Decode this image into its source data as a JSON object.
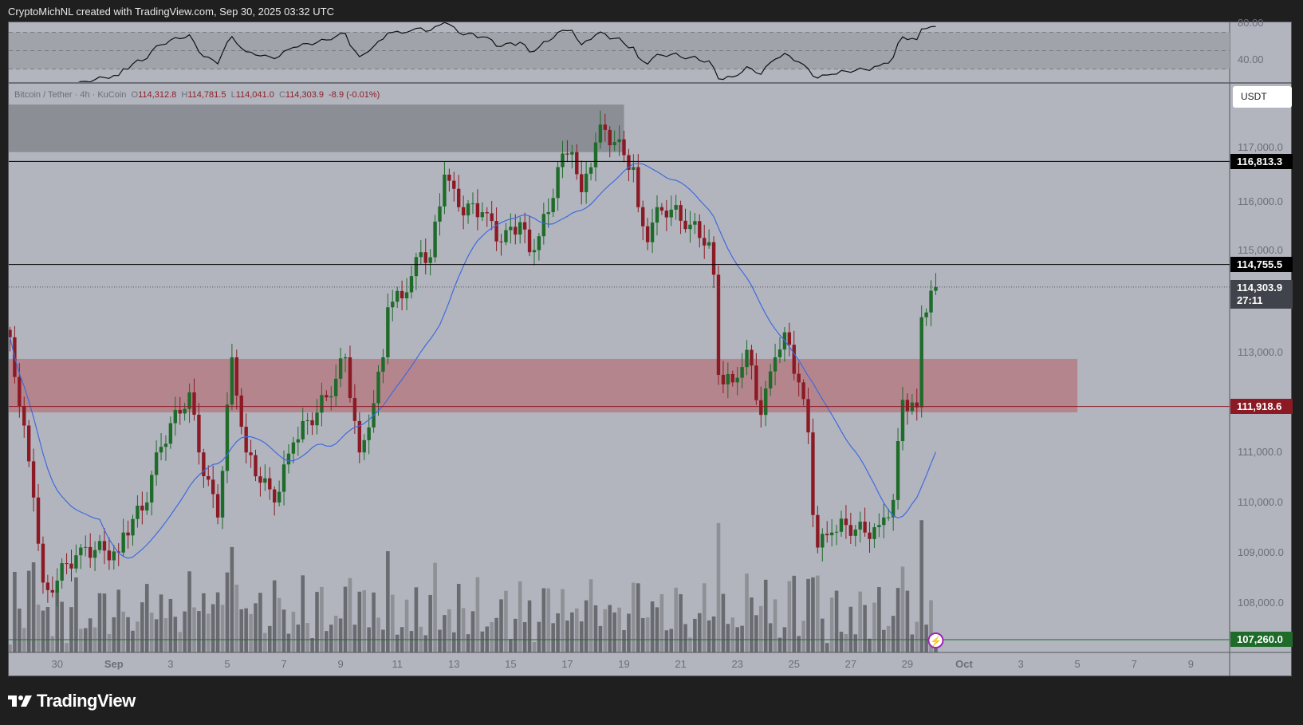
{
  "header": {
    "attribution": "CryptoMichNL created with TradingView.com, Sep 30, 2025 03:32 UTC"
  },
  "legend": {
    "symbol": "Bitcoin / Tether · 4h · KuCoin",
    "o_label": "O",
    "o": "114,312.8",
    "h_label": "H",
    "h": "114,781.5",
    "l_label": "L",
    "l": "114,041.0",
    "c_label": "C",
    "c": "114,303.9",
    "change": "-8.9 (-0.01%)"
  },
  "currency_button": "USDT",
  "brand": "TradingView",
  "colors": {
    "up": "#1e6b2a",
    "down": "#8b1a24",
    "ma": "#3f6ae0",
    "red_zone": "#b47c85",
    "grey_zone": "#878990",
    "background": "#b2b5be"
  },
  "chart_data": {
    "type": "candlestick",
    "interval": "4h",
    "price_axis": {
      "ticks": [
        108000,
        109000,
        110000,
        111000,
        112000,
        113000,
        114000,
        115000,
        116000,
        117000
      ],
      "tick_labels": [
        "108,000.0",
        "109,000.0",
        "110,000.0",
        "111,000.0",
        "113,000.0",
        "114,000.0",
        "115,000.0",
        "116,000.0",
        "117,000.0"
      ],
      "ylim": [
        107000,
        118000
      ]
    },
    "time_axis": {
      "labels": [
        "30",
        "Sep",
        "3",
        "5",
        "7",
        "9",
        "11",
        "13",
        "15",
        "17",
        "19",
        "21",
        "23",
        "25",
        "27",
        "29",
        "Oct",
        "3",
        "5",
        "7",
        "9"
      ]
    },
    "price_path": [
      [
        "2025-08-28T08:00",
        113300
      ],
      [
        "2025-08-29T04:00",
        110100
      ],
      [
        "2025-08-29T12:00",
        108400
      ],
      [
        "2025-08-29T16:00",
        108250
      ],
      [
        "2025-08-30T20:00",
        109100
      ],
      [
        "2025-09-01T04:00",
        109000
      ],
      [
        "2025-09-01T08:00",
        109400
      ],
      [
        "2025-09-02T04:00",
        110000
      ],
      [
        "2025-09-02T12:00",
        111000
      ],
      [
        "2025-09-03T16:00",
        112200
      ],
      [
        "2025-09-04T00:00",
        111000
      ],
      [
        "2025-09-04T16:00",
        109700
      ],
      [
        "2025-09-05T04:00",
        112900
      ],
      [
        "2025-09-05T16:00",
        111000
      ],
      [
        "2025-09-06T16:00",
        110000
      ],
      [
        "2025-09-07T08:00",
        111200
      ],
      [
        "2025-09-08T12:00",
        112100
      ],
      [
        "2025-09-09T04:00",
        112900
      ],
      [
        "2025-09-09T16:00",
        111000
      ],
      [
        "2025-09-10T00:00",
        111500
      ],
      [
        "2025-09-10T12:00",
        112900
      ],
      [
        "2025-09-10T16:00",
        113900
      ],
      [
        "2025-09-11T08:00",
        114200
      ],
      [
        "2025-09-11T20:00",
        115000
      ],
      [
        "2025-09-12T04:00",
        114900
      ],
      [
        "2025-09-12T16:00",
        116550
      ],
      [
        "2025-09-13T04:00",
        115900
      ],
      [
        "2025-09-14T00:00",
        115800
      ],
      [
        "2025-09-14T16:00",
        115200
      ],
      [
        "2025-09-15T08:00",
        115600
      ],
      [
        "2025-09-15T16:00",
        115000
      ],
      [
        "2025-09-16T08:00",
        115800
      ],
      [
        "2025-09-16T16:00",
        116700
      ],
      [
        "2025-09-17T04:00",
        117000
      ],
      [
        "2025-09-17T12:00",
        116200
      ],
      [
        "2025-09-18T04:00",
        117550
      ],
      [
        "2025-09-18T16:00",
        117200
      ],
      [
        "2025-09-19T08:00",
        116700
      ],
      [
        "2025-09-19T12:00",
        115900
      ],
      [
        "2025-09-19T20:00",
        115200
      ],
      [
        "2025-09-20T04:00",
        115900
      ],
      [
        "2025-09-20T16:00",
        115850
      ],
      [
        "2025-09-21T08:00",
        115550
      ],
      [
        "2025-09-22T00:00",
        115200
      ],
      [
        "2025-09-22T04:00",
        114550
      ],
      [
        "2025-09-22T08:00",
        112550
      ],
      [
        "2025-09-22T20:00",
        112400
      ],
      [
        "2025-09-23T08:00",
        113050
      ],
      [
        "2025-09-23T20:00",
        111750
      ],
      [
        "2025-09-24T08:00",
        112900
      ],
      [
        "2025-09-24T16:00",
        113400
      ],
      [
        "2025-09-25T04:00",
        112400
      ],
      [
        "2025-09-25T12:00",
        111400
      ],
      [
        "2025-09-25T16:00",
        109750
      ],
      [
        "2025-09-25T20:00",
        109100
      ],
      [
        "2025-09-26T08:00",
        109400
      ],
      [
        "2025-09-26T20:00",
        109550
      ],
      [
        "2025-09-27T12:00",
        109400
      ],
      [
        "2025-09-28T00:00",
        109550
      ],
      [
        "2025-09-28T12:00",
        110050
      ],
      [
        "2025-09-28T20:00",
        112050
      ],
      [
        "2025-09-29T08:00",
        111900
      ],
      [
        "2025-09-29T12:00",
        113700
      ],
      [
        "2025-09-29T20:00",
        114230
      ],
      [
        "2025-09-30T00:00",
        114303.9
      ]
    ],
    "horizontal_lines": [
      {
        "price": 116813.3,
        "label": "116,813.3",
        "color": "#000000"
      },
      {
        "price": 114755.5,
        "label": "114,755.5",
        "color": "#000000"
      },
      {
        "price": 111918.6,
        "label": "111,918.6",
        "color": "#8b1a24"
      },
      {
        "price": 107260.0,
        "label": "107,260.0",
        "color": "#1e6b2a"
      }
    ],
    "current_price": {
      "label": "114,303.9",
      "countdown": "27:11"
    },
    "zones": [
      {
        "name": "grey",
        "from": "2025-08-28T08:00",
        "to": "2025-09-19T00:00",
        "low": 117000,
        "high": 117950
      },
      {
        "name": "red",
        "from": "2025-08-28T08:00",
        "to": "2025-10-05T00:00",
        "low": 111800,
        "high": 112870
      }
    ],
    "rsi": {
      "tick_labels": [
        "80.00",
        "40.00"
      ],
      "levels": [
        30,
        50,
        70
      ]
    }
  }
}
